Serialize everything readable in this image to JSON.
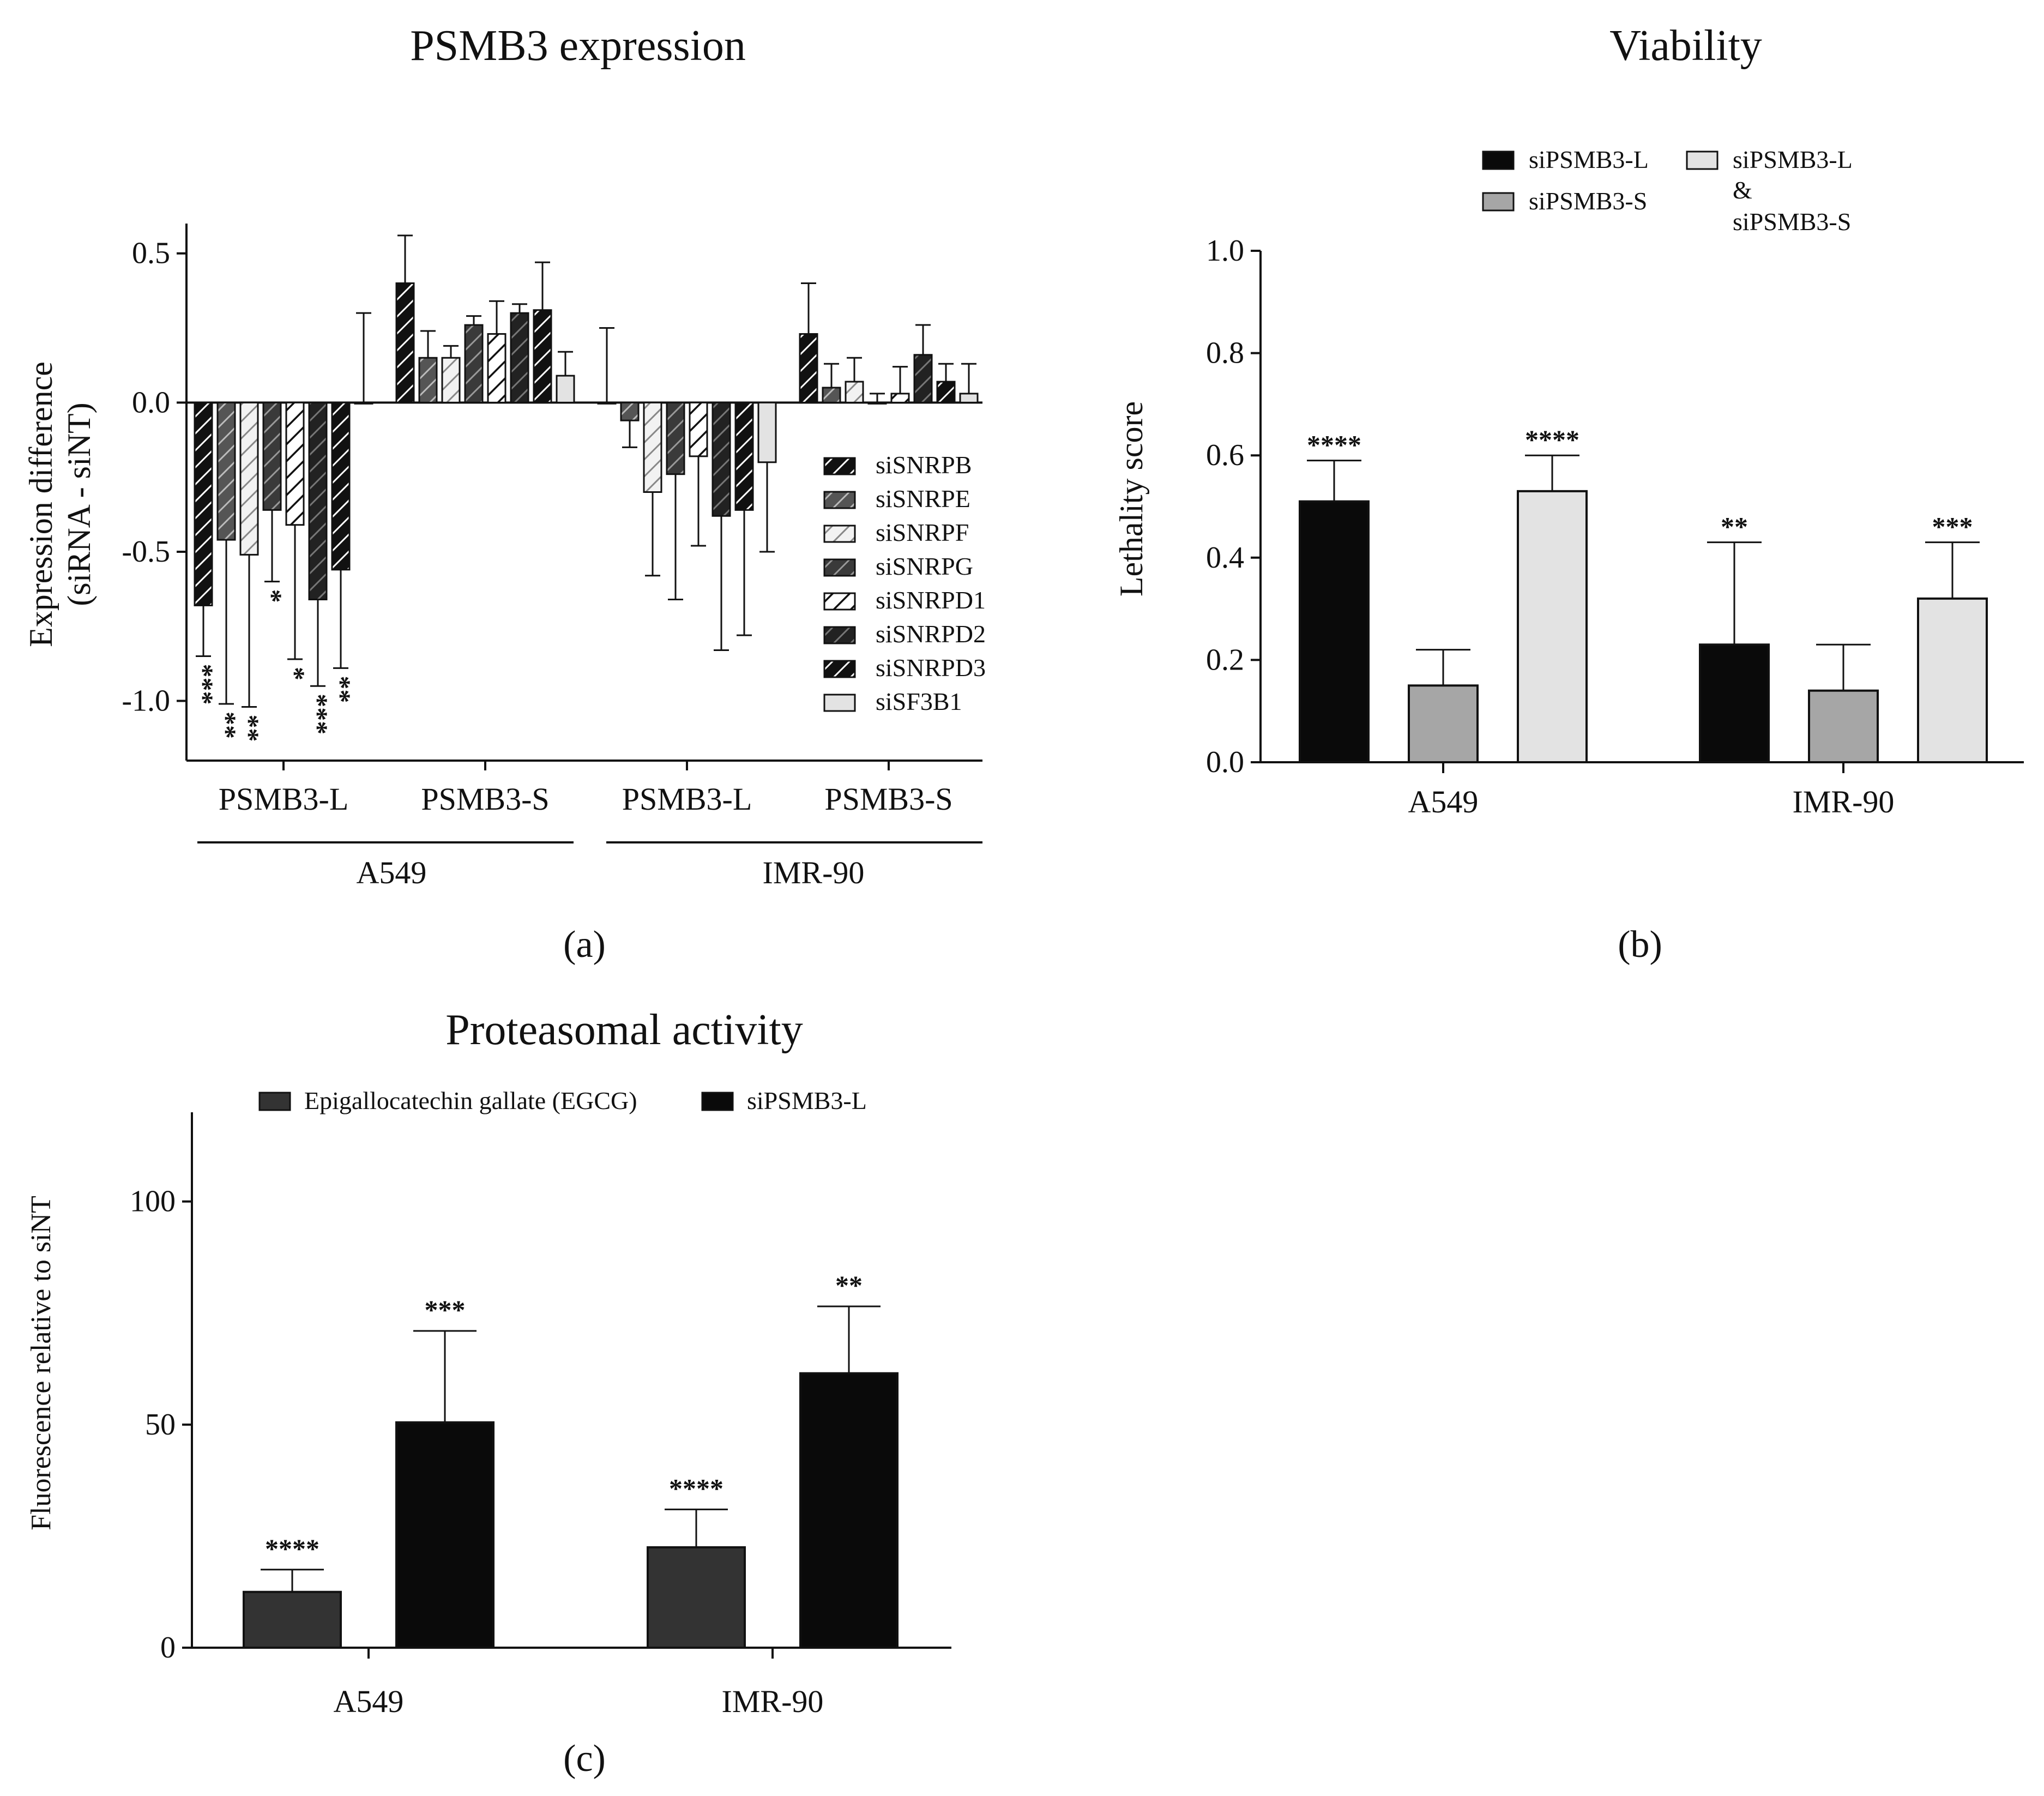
{
  "colors": {
    "black": "#0a0a0a",
    "dark_gray": "#333333",
    "mid_gray": "#a6a6a6",
    "light_gray": "#e3e3e3",
    "white": "#ffffff"
  },
  "chart_data": [
    {
      "id": "a",
      "type": "bar",
      "panel_label": "(a)",
      "title": "PSMB3 expression",
      "ylabel": "Expression difference\n(siRNA - siNT)",
      "ylabel_lines": [
        "Expression difference",
        "(siRNA - siNT)"
      ],
      "ylim": [
        -1.2,
        0.6
      ],
      "yticks": [
        0.5,
        0.0,
        -0.5,
        -1.0
      ],
      "ytick_labels": [
        "0.5",
        "0.0",
        "-0.5",
        "-1.0"
      ],
      "categories": [
        "PSMB3-L",
        "PSMB3-S",
        "PSMB3-L",
        "PSMB3-S"
      ],
      "cell_lines": [
        "A549",
        "IMR-90"
      ],
      "legend": [
        "siSNRPB",
        "siSNRPE",
        "siSNRPF",
        "siSNRPG",
        "siSNRPD1",
        "siSNRPD2",
        "siSNRPD3",
        "siSF3B1"
      ],
      "series": [
        {
          "name": "siSNRPB",
          "style": "hatch-dark",
          "values": [
            -0.68,
            0.4,
            0.0,
            0.23
          ],
          "errors": [
            0.17,
            0.16,
            0.25,
            0.17
          ],
          "stars": [
            "***",
            "",
            "",
            ""
          ]
        },
        {
          "name": "siSNRPE",
          "style": "hatch-gray",
          "values": [
            -0.46,
            0.15,
            -0.06,
            0.05
          ],
          "errors": [
            0.55,
            0.09,
            0.09,
            0.08
          ],
          "stars": [
            "**",
            "",
            "",
            ""
          ]
        },
        {
          "name": "siSNRPF",
          "style": "hatch-light",
          "values": [
            -0.51,
            0.15,
            -0.3,
            0.07
          ],
          "errors": [
            0.51,
            0.04,
            0.28,
            0.08
          ],
          "stars": [
            "**",
            "",
            "",
            ""
          ]
        },
        {
          "name": "siSNRPG",
          "style": "hatch-darkgray",
          "values": [
            -0.36,
            0.26,
            -0.24,
            0.0
          ],
          "errors": [
            0.24,
            0.03,
            0.42,
            0.03
          ],
          "stars": [
            "*",
            "",
            "",
            ""
          ]
        },
        {
          "name": "siSNRPD1",
          "style": "hatch-white",
          "values": [
            -0.41,
            0.23,
            -0.18,
            0.03
          ],
          "errors": [
            0.45,
            0.11,
            0.3,
            0.09
          ],
          "stars": [
            "*",
            "",
            "",
            ""
          ]
        },
        {
          "name": "siSNRPD2",
          "style": "hatch-dark2",
          "values": [
            -0.66,
            0.3,
            -0.38,
            0.16
          ],
          "errors": [
            0.29,
            0.03,
            0.45,
            0.1
          ],
          "stars": [
            "***",
            "",
            "",
            ""
          ]
        },
        {
          "name": "siSNRPD3",
          "style": "hatch-dark",
          "values": [
            -0.56,
            0.31,
            -0.36,
            0.07
          ],
          "errors": [
            0.33,
            0.16,
            0.42,
            0.06
          ],
          "stars": [
            "**",
            "",
            "",
            ""
          ]
        },
        {
          "name": "siSF3B1",
          "style": "light",
          "values": [
            0.0,
            0.09,
            -0.2,
            0.03
          ],
          "errors": [
            0.3,
            0.08,
            0.3,
            0.1
          ],
          "stars": [
            "",
            "",
            "",
            ""
          ]
        }
      ]
    },
    {
      "id": "b",
      "type": "bar",
      "panel_label": "(b)",
      "title": "Viability",
      "ylabel": "Lethality score",
      "ylim": [
        0.0,
        1.0
      ],
      "yticks": [
        0.0,
        0.2,
        0.4,
        0.6,
        0.8,
        1.0
      ],
      "ytick_labels": [
        "0.0",
        "0.2",
        "0.4",
        "0.6",
        "0.8",
        "1.0"
      ],
      "categories": [
        "A549",
        "IMR-90"
      ],
      "legend": [
        "siPSMB3-L",
        "siPSMB3-S",
        "siPSMB3-L",
        "&",
        "siPSMB3-S"
      ],
      "series": [
        {
          "name": "siPSMB3-L",
          "style": "black",
          "values": [
            0.51,
            0.23
          ],
          "errors": [
            0.08,
            0.2
          ],
          "stars": [
            "****",
            "**"
          ]
        },
        {
          "name": "siPSMB3-S",
          "style": "mid",
          "values": [
            0.15,
            0.14
          ],
          "errors": [
            0.07,
            0.09
          ],
          "stars": [
            "",
            ""
          ]
        },
        {
          "name": "siPSMB3-L & siPSMB3-S",
          "style": "light",
          "values": [
            0.53,
            0.32
          ],
          "errors": [
            0.07,
            0.11
          ],
          "stars": [
            "****",
            "***"
          ]
        }
      ]
    },
    {
      "id": "c",
      "type": "bar",
      "panel_label": "(c)",
      "title": "Proteasomal activity",
      "ylabel": "Fluorescence relative to siNT",
      "ylim": [
        0,
        120
      ],
      "yticks": [
        0,
        50,
        100
      ],
      "ytick_labels": [
        "0",
        "50",
        "100"
      ],
      "categories": [
        "A549",
        "IMR-90"
      ],
      "legend": [
        "Epigallocatechin gallate (EGCG)",
        "siPSMB3-L"
      ],
      "series": [
        {
          "name": "Epigallocatechin gallate (EGCG)",
          "style": "dark",
          "values": [
            12.5,
            22.5
          ],
          "errors": [
            5.0,
            8.5
          ],
          "stars": [
            "****",
            "****"
          ]
        },
        {
          "name": "siPSMB3-L",
          "style": "black",
          "values": [
            50.5,
            61.5
          ],
          "errors": [
            20.5,
            15.0
          ],
          "stars": [
            "***",
            "**"
          ]
        }
      ]
    }
  ]
}
